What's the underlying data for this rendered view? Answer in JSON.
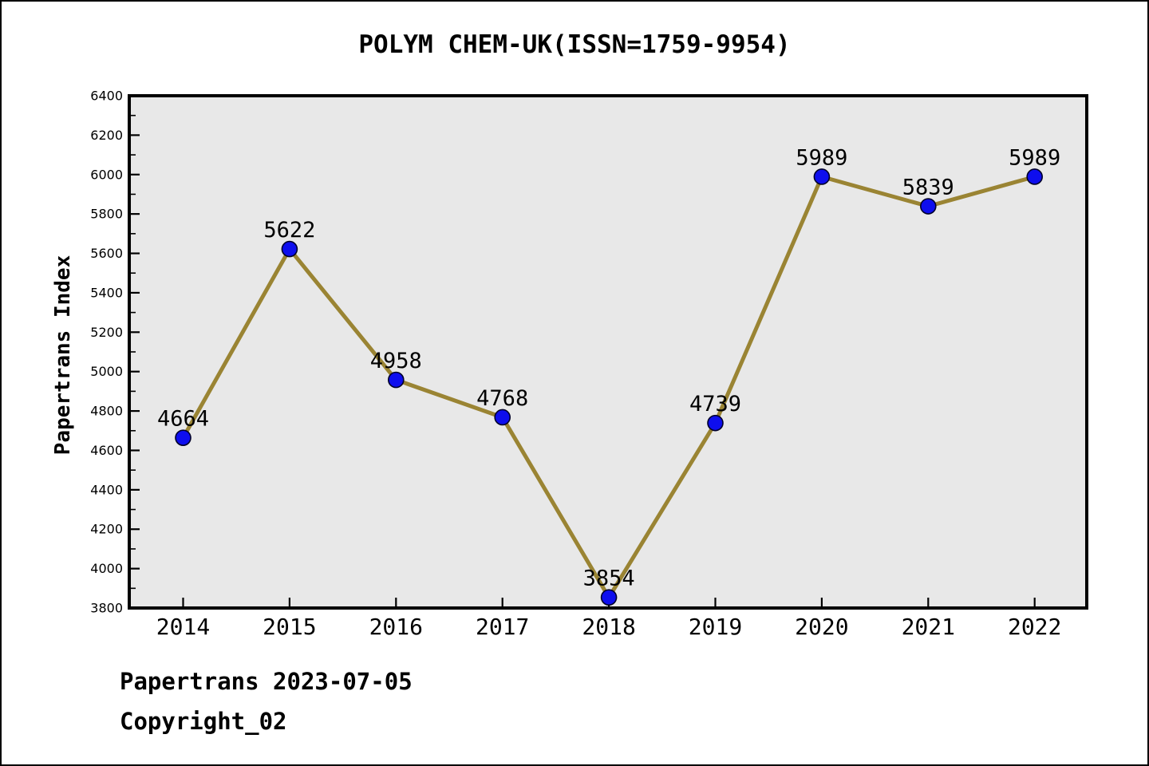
{
  "chart_data": {
    "type": "line",
    "title": "POLYM CHEM-UK(ISSN=1759-9954)",
    "xlabel": "",
    "ylabel": "Papertrans Index",
    "categories": [
      "2014",
      "2015",
      "2016",
      "2017",
      "2018",
      "2019",
      "2020",
      "2021",
      "2022"
    ],
    "series": [
      {
        "name": "Papertrans Index",
        "values": [
          4664,
          5622,
          4958,
          4768,
          3854,
          4739,
          5989,
          5839,
          5989
        ],
        "point_labels": [
          "4664",
          "5622",
          "4958",
          "4768",
          "3854",
          "4739",
          "5989",
          "5839",
          "5989"
        ]
      }
    ],
    "ylim": [
      3800,
      6400
    ],
    "yticks": [
      3800,
      4000,
      4200,
      4400,
      4600,
      4800,
      5000,
      5200,
      5400,
      5600,
      5800,
      6000,
      6200,
      6400
    ],
    "ytick_minor_step": 100,
    "grid": false,
    "legend_position": "none",
    "annotations": [
      "Papertrans 2023-07-05",
      "Copyright_02"
    ],
    "colors": {
      "line": "#9a8433",
      "marker_fill": "#0e0eee",
      "marker_edge": "#00002a",
      "plot_background": "#e8e8e8",
      "axis": "#000000",
      "label_text": "#000000"
    }
  }
}
